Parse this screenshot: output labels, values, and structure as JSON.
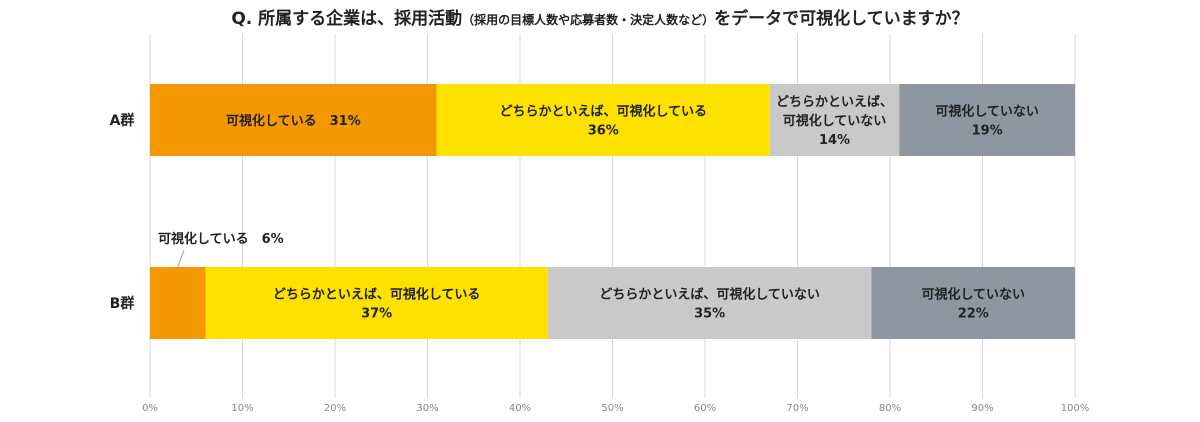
{
  "title": {
    "main_prefix": "Q. 所属する企業は、採用活動",
    "sub": "（採用の目標人数や応募者数・決定人数など）",
    "main_suffix": "をデータで可視化していますか？"
  },
  "chart_data": {
    "type": "bar",
    "orientation": "horizontal",
    "stacked": true,
    "xlim": [
      0,
      100
    ],
    "x_ticks": [
      "0%",
      "10%",
      "20%",
      "30%",
      "40%",
      "50%",
      "60%",
      "70%",
      "80%",
      "90%",
      "100%"
    ],
    "grid": true,
    "categories": [
      "A群",
      "B群"
    ],
    "series": [
      {
        "name": "可視化している",
        "color": "#F39800",
        "values": [
          31,
          6
        ]
      },
      {
        "name": "どちらかといえば、可視化している",
        "color": "#FFE100",
        "values": [
          36,
          37
        ]
      },
      {
        "name": "どちらかといえば、可視化していない",
        "color": "#C9C9C9",
        "values": [
          14,
          35
        ]
      },
      {
        "name": "可視化していない",
        "color": "#8E96A1",
        "values": [
          19,
          22
        ]
      }
    ],
    "data_labels": [
      [
        {
          "lines": [
            "可視化している　31%"
          ]
        },
        {
          "lines": [
            "どちらかといえば、可視化している",
            "36%"
          ]
        },
        {
          "lines": [
            "どちらかといえば、",
            "可視化していない",
            "14%"
          ]
        },
        {
          "lines": [
            "可視化していない",
            "19%"
          ]
        }
      ],
      [
        {
          "lines": [],
          "callout": "可視化している　6%"
        },
        {
          "lines": [
            "どちらかといえば、可視化している",
            "37%"
          ]
        },
        {
          "lines": [
            "どちらかといえば、可視化していない",
            "35%"
          ]
        },
        {
          "lines": [
            "可視化していない",
            "22%"
          ]
        }
      ]
    ]
  }
}
